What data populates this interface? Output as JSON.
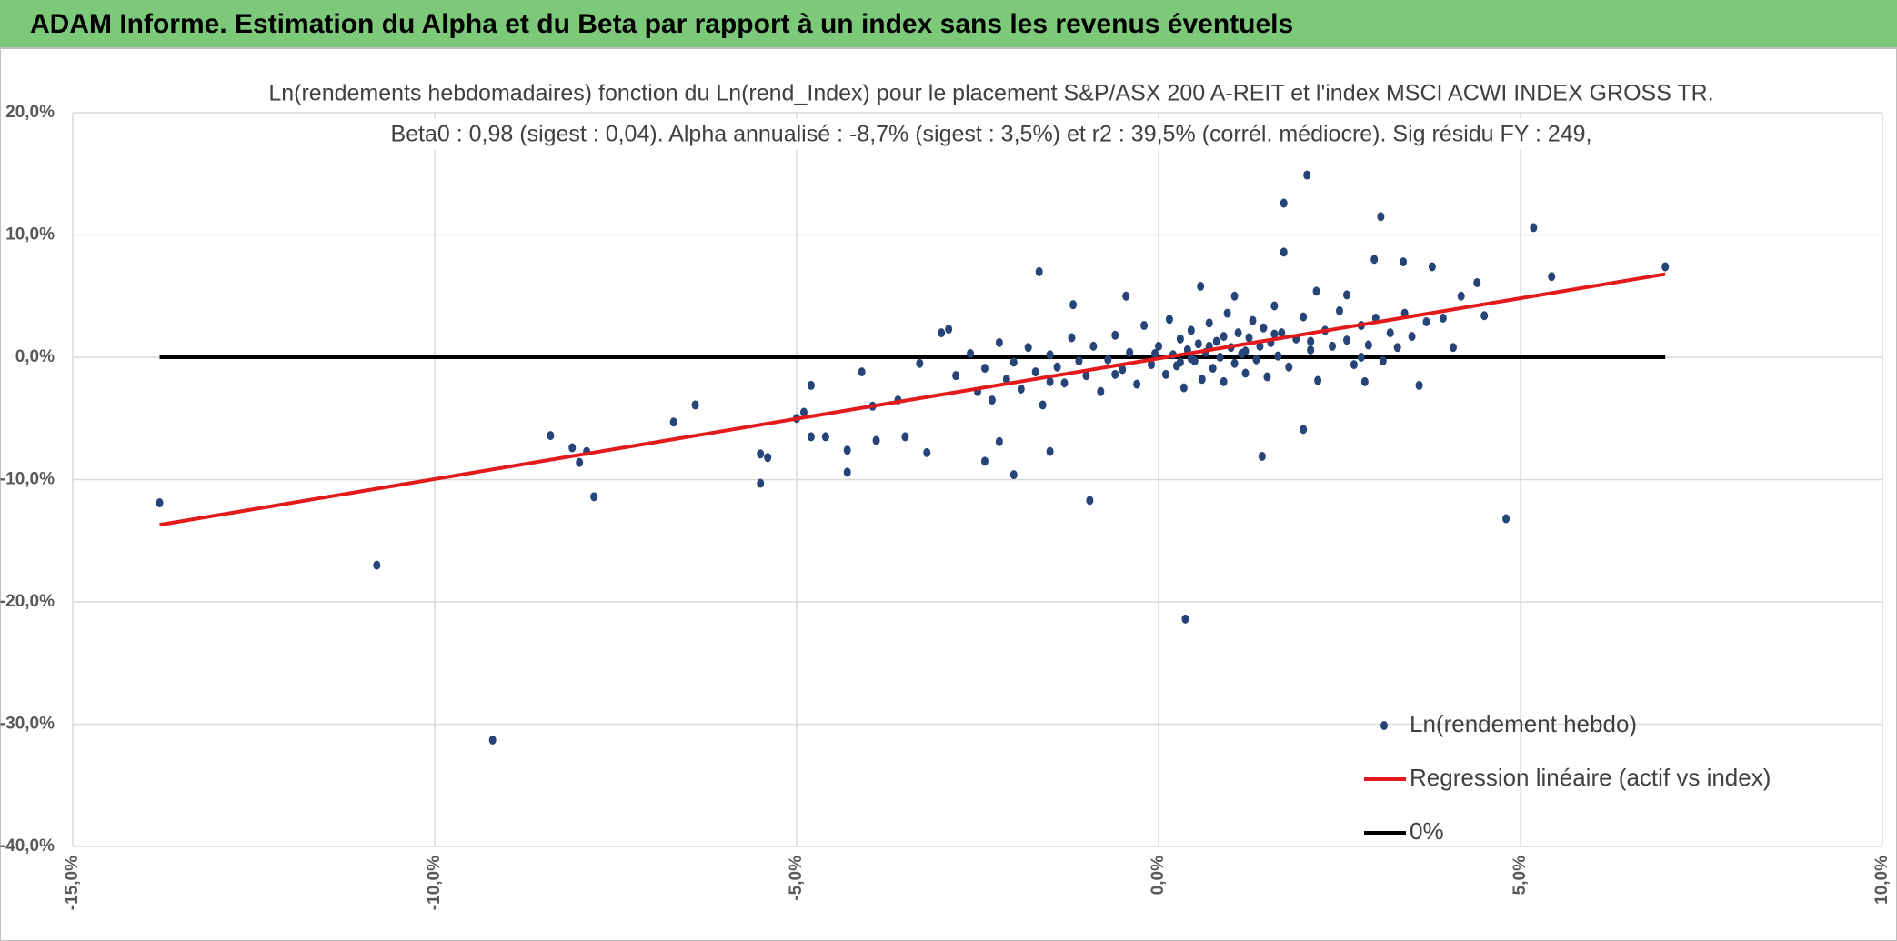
{
  "header": "ADAM Informe. Estimation du Alpha et du Beta par rapport à un index sans les revenus éventuels",
  "chart_data": {
    "type": "scatter",
    "title": "Ln(rendements hebdomadaires) fonction du Ln(rend_Index) pour le placement S&P/ASX 200 A-REIT et l'index MSCI ACWI INDEX GROSS TR.",
    "subtitle": "Beta0 : 0,98 (sigest : 0,04). Alpha annualisé : -8,7% (sigest : 3,5%) et r2 : 39,5% (corrél. médiocre). Sig résidu FY : 249,",
    "xlim": [
      -15,
      10
    ],
    "xticks": [
      {
        "value": -15,
        "label": "-15,0%"
      },
      {
        "value": -10,
        "label": "-10,0%"
      },
      {
        "value": -5,
        "label": "-5,0%"
      },
      {
        "value": 0,
        "label": "0,0%"
      },
      {
        "value": 5,
        "label": "5,0%"
      },
      {
        "value": 10,
        "label": "10,0%"
      }
    ],
    "ylim": [
      -40,
      20
    ],
    "yticks": [
      {
        "value": -40,
        "label": "-40,0%"
      },
      {
        "value": -30,
        "label": "-30,0%"
      },
      {
        "value": -20,
        "label": "-20,0%"
      },
      {
        "value": -10,
        "label": "-10,0%"
      },
      {
        "value": 0,
        "label": "0,0%"
      },
      {
        "value": 10,
        "label": "10,0%"
      },
      {
        "value": 20,
        "label": "20,0%"
      }
    ],
    "grid": true,
    "legend": "lower right",
    "series": [
      {
        "name": "Ln(rendement hebdo)",
        "color": "#264478",
        "type": "scatter",
        "x": [
          -13.8,
          -10.8,
          -9.2,
          -8.4,
          -8.1,
          -8.0,
          -7.9,
          -7.8,
          -6.7,
          -6.4,
          -5.5,
          -5.4,
          -5.5,
          -5.0,
          -4.9,
          -4.8,
          -4.6,
          -4.8,
          -4.3,
          -4.3,
          -4.1,
          -3.95,
          -3.9,
          -3.6,
          -3.5,
          -3.2,
          -3.0,
          -2.9,
          -3.3,
          -2.4,
          -2.2,
          -2.0,
          -1.65,
          -1.5,
          -0.95,
          0.37,
          1.43,
          2.0,
          1.73,
          2.05,
          1.73,
          3.07,
          2.98,
          3.38,
          3.78,
          4.4,
          5.18,
          5.43,
          7.0,
          4.8,
          3.6,
          4.07,
          4.5,
          3.93,
          4.18,
          2.18,
          1.05,
          0.58,
          -1.18,
          -0.45,
          2.6,
          2.8,
          2.85,
          -2.8,
          -2.6,
          -2.5,
          -2.4,
          -2.3,
          -2.2,
          -2.1,
          -2.0,
          -1.9,
          -1.8,
          -1.7,
          -1.6,
          -1.5,
          -1.4,
          -1.3,
          -1.2,
          -1.1,
          -1.0,
          -0.9,
          -0.8,
          -0.7,
          -0.6,
          -0.5,
          -0.4,
          -0.3,
          -0.2,
          -0.1,
          0.0,
          0.1,
          0.15,
          0.2,
          0.25,
          0.3,
          0.35,
          0.4,
          0.45,
          0.5,
          0.55,
          0.6,
          0.65,
          0.7,
          0.75,
          0.8,
          0.85,
          0.9,
          0.95,
          1.0,
          1.05,
          1.1,
          1.15,
          1.2,
          1.25,
          1.3,
          1.35,
          1.4,
          1.45,
          1.5,
          1.55,
          1.6,
          1.65,
          1.7,
          1.8,
          1.9,
          2.0,
          2.1,
          2.2,
          2.3,
          2.4,
          2.5,
          2.6,
          2.7,
          2.8,
          2.9,
          3.0,
          3.1,
          3.2,
          3.3,
          3.4,
          3.5,
          3.7,
          -0.05,
          0.45,
          0.9,
          1.2,
          0.3,
          -0.6,
          0.7,
          1.6,
          2.1,
          -1.5
        ],
        "values": [
          -11.9,
          -17.0,
          -31.3,
          -6.4,
          -7.4,
          -8.6,
          -7.7,
          -11.4,
          -5.3,
          -3.9,
          -7.9,
          -8.2,
          -10.3,
          -5.0,
          -4.5,
          -6.5,
          -6.5,
          -2.3,
          -9.4,
          -7.6,
          -1.2,
          -4.0,
          -6.8,
          -3.5,
          -6.5,
          -7.8,
          2.0,
          2.3,
          -0.5,
          -8.5,
          -6.9,
          -9.6,
          7.0,
          -7.7,
          -11.7,
          -21.4,
          -8.1,
          -5.9,
          12.6,
          14.9,
          8.6,
          11.5,
          8.0,
          7.8,
          7.4,
          6.1,
          10.6,
          6.6,
          7.4,
          -13.2,
          -2.3,
          0.8,
          3.4,
          3.2,
          5.0,
          5.4,
          5.0,
          5.8,
          4.3,
          5.0,
          5.1,
          0,
          -2.0,
          -1.5,
          0.3,
          -2.8,
          -0.9,
          -3.5,
          1.2,
          -1.8,
          -0.4,
          -2.6,
          0.8,
          -1.2,
          -3.9,
          0.2,
          -0.8,
          -2.1,
          1.6,
          -0.3,
          -1.5,
          0.9,
          -2.8,
          -0.2,
          1.8,
          -1.0,
          0.4,
          -2.2,
          2.6,
          -0.6,
          0.9,
          -1.4,
          3.1,
          0.2,
          -0.7,
          1.5,
          -2.5,
          0.6,
          2.2,
          -0.3,
          1.1,
          -1.8,
          0.4,
          2.8,
          -0.9,
          1.3,
          0.0,
          -2.0,
          3.6,
          0.8,
          -0.5,
          2.0,
          0.3,
          -1.3,
          1.6,
          3.0,
          -0.2,
          0.9,
          2.4,
          -1.6,
          1.2,
          4.2,
          0.1,
          2.0,
          -0.8,
          1.5,
          3.3,
          0.6,
          -1.9,
          2.2,
          0.9,
          3.8,
          1.4,
          -0.6,
          2.6,
          1.0,
          3.2,
          -0.3,
          2.0,
          0.8,
          3.6,
          1.7,
          2.9,
          0.3,
          -0.1,
          1.7,
          0.5,
          -0.4,
          -1.4,
          0.9,
          1.9,
          1.3,
          -2.0
        ]
      },
      {
        "name": "Regression linéaire (actif vs index)",
        "color": "#e31a1c",
        "type": "line",
        "x": [
          -13.8,
          7.0
        ],
        "values": [
          -13.7,
          6.8
        ]
      },
      {
        "name": "0%",
        "color": "#000000",
        "type": "line",
        "x": [
          -13.8,
          7.0
        ],
        "values": [
          0,
          0
        ]
      }
    ]
  }
}
